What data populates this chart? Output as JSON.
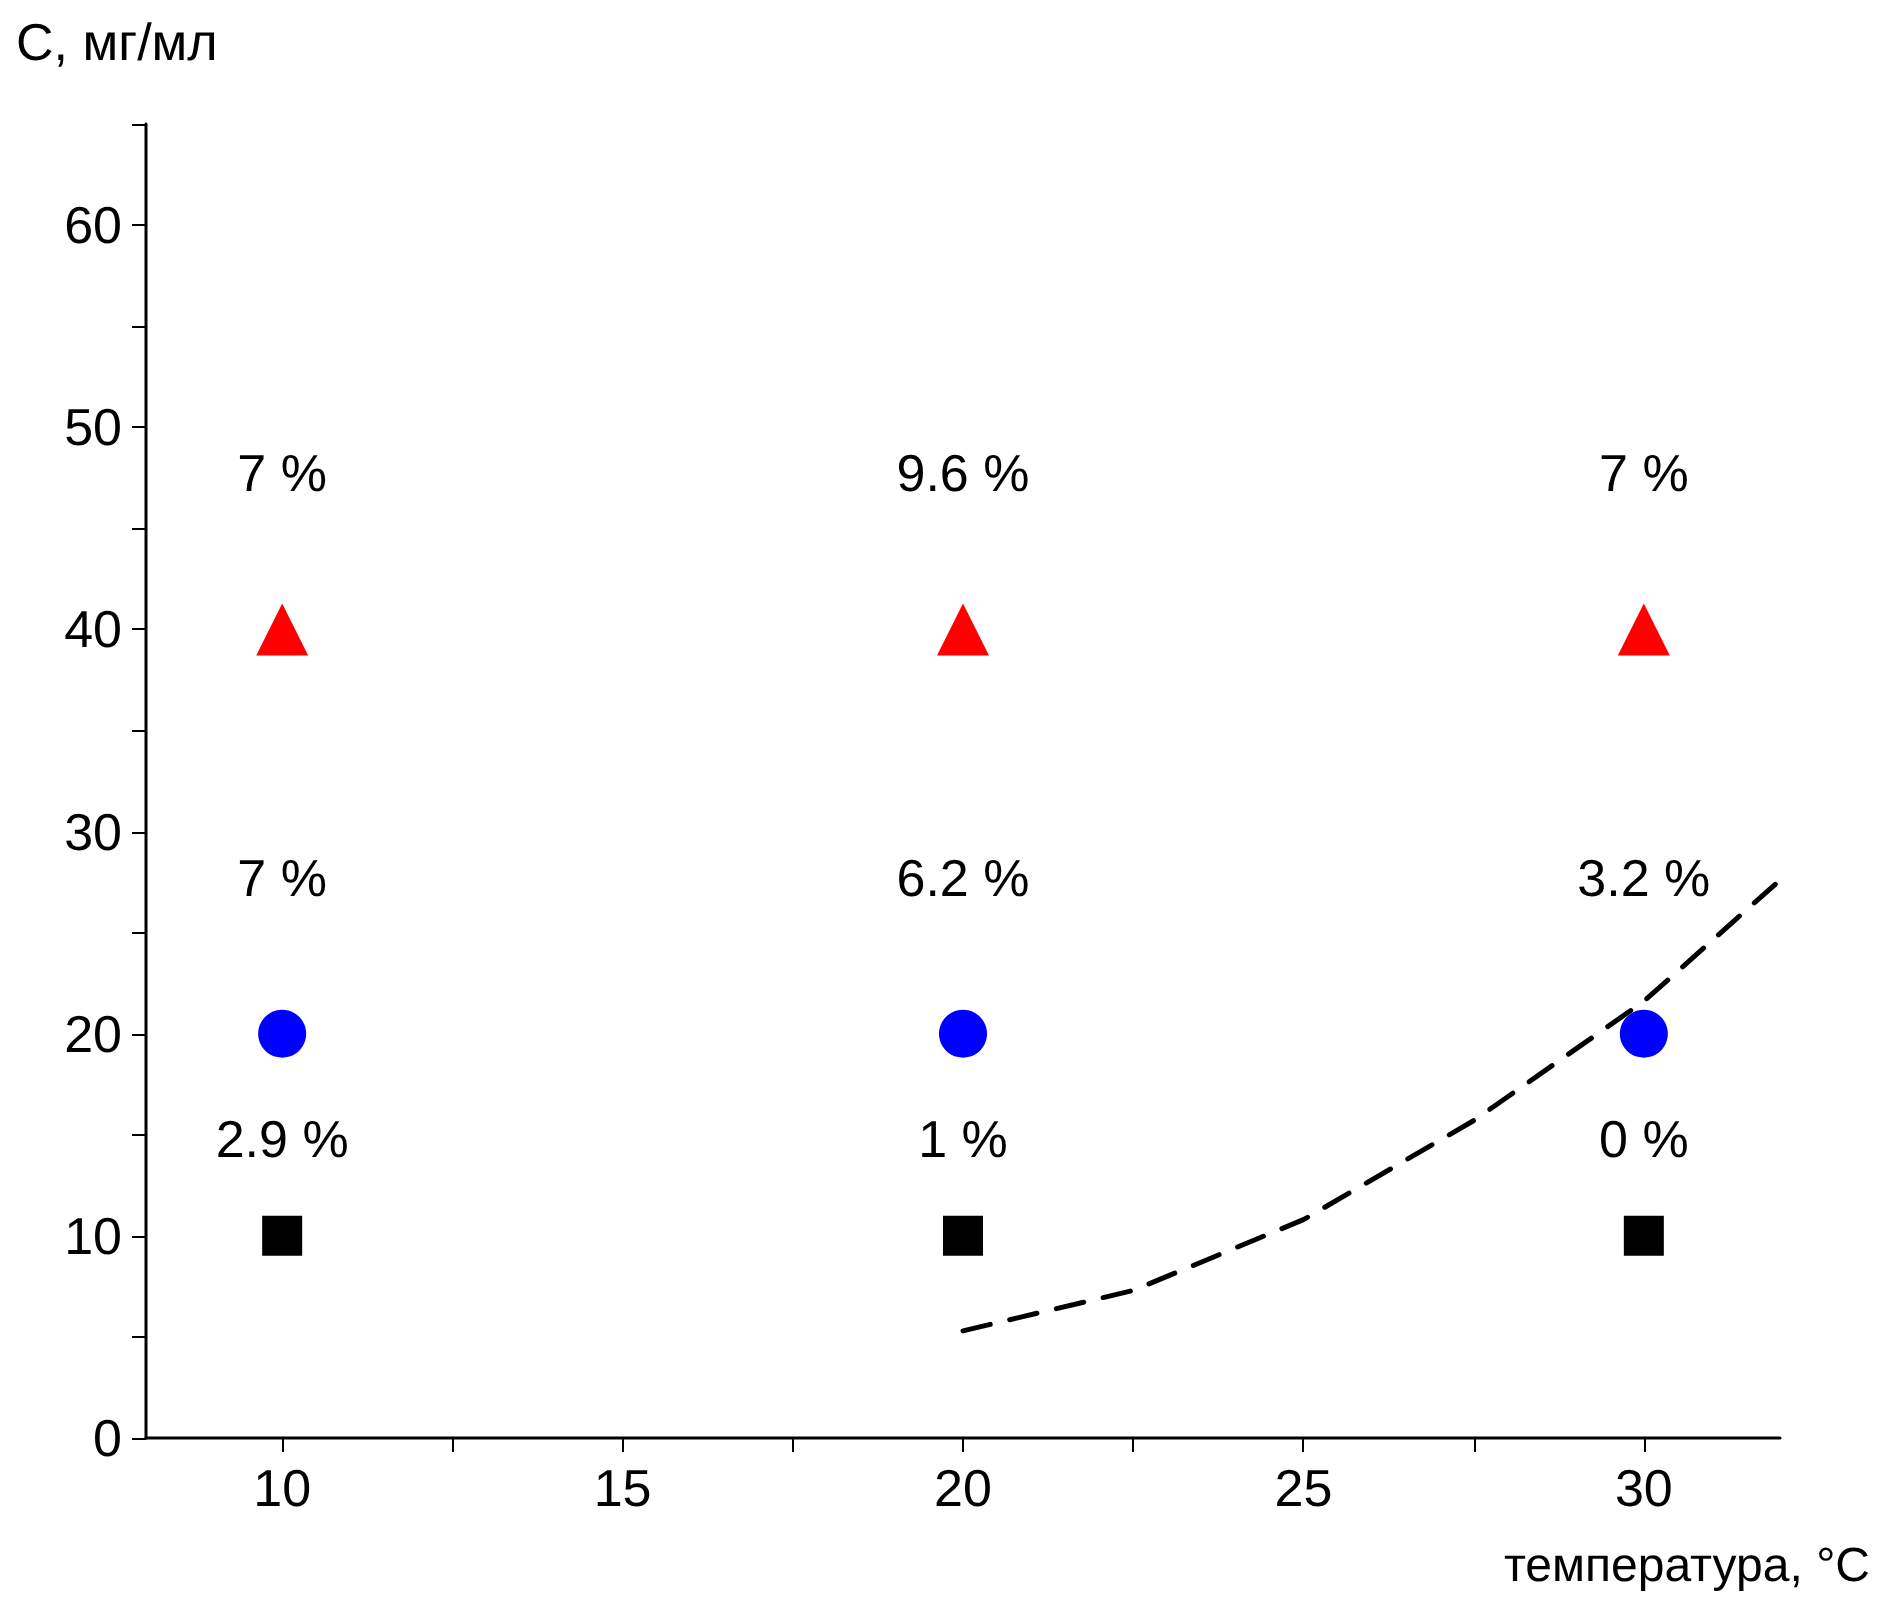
{
  "chart_data": {
    "type": "scatter",
    "xlabel": "температура, °C",
    "ylabel": "C, мг/мл",
    "xlim": [
      8,
      32
    ],
    "xticks": [
      10,
      {
        "value": 12.5,
        "label": null
      },
      15,
      {
        "value": 17.5,
        "label": null
      },
      20,
      {
        "value": 22.5,
        "label": null
      },
      25,
      {
        "value": 27.5,
        "label": null
      },
      30
    ],
    "ylim": [
      0,
      65
    ],
    "yticks": [
      0,
      {
        "value": 5,
        "label": null
      },
      10,
      {
        "value": 15,
        "label": null
      },
      20,
      {
        "value": 25,
        "label": null
      },
      30,
      {
        "value": 35,
        "label": null
      },
      40,
      {
        "value": 45,
        "label": null
      },
      50,
      {
        "value": 55,
        "label": null
      },
      60,
      {
        "value": 65,
        "label": null
      }
    ],
    "grid": false,
    "series": [
      {
        "type": "scatter",
        "marker": "triangle",
        "color": "#ff0000",
        "x": [
          10,
          20,
          30
        ],
        "values": [
          40,
          40,
          40
        ]
      },
      {
        "type": "scatter",
        "marker": "circle",
        "color": "#0000ff",
        "x": [
          10,
          20,
          30
        ],
        "values": [
          20,
          20,
          20
        ]
      },
      {
        "type": "scatter",
        "marker": "square",
        "color": "#000000",
        "x": [
          10,
          20,
          30
        ],
        "values": [
          10,
          10,
          10
        ]
      },
      {
        "type": "line",
        "marker": "none",
        "line_style": "dashed",
        "color": "#000000",
        "x": [
          20,
          22.5,
          25,
          27.5,
          30,
          32
        ],
        "values": [
          5.3,
          7.3,
          10.8,
          15.7,
          21.6,
          27.6
        ]
      }
    ],
    "annotations": [
      {
        "text": "7 %",
        "x": 10,
        "y": 40
      },
      {
        "text": "9.6 %",
        "x": 20,
        "y": 40
      },
      {
        "text": "7 %",
        "x": 30,
        "y": 40
      },
      {
        "text": "7 %",
        "x": 10,
        "y": 20
      },
      {
        "text": "6.2 %",
        "x": 20,
        "y": 20
      },
      {
        "text": "3.2 %",
        "x": 30,
        "y": 20
      },
      {
        "text": "2.9 %",
        "x": 10,
        "y": 10
      },
      {
        "text": "1 %",
        "x": 20,
        "y": 10
      },
      {
        "text": "0 %",
        "x": 30,
        "y": 10
      }
    ]
  }
}
